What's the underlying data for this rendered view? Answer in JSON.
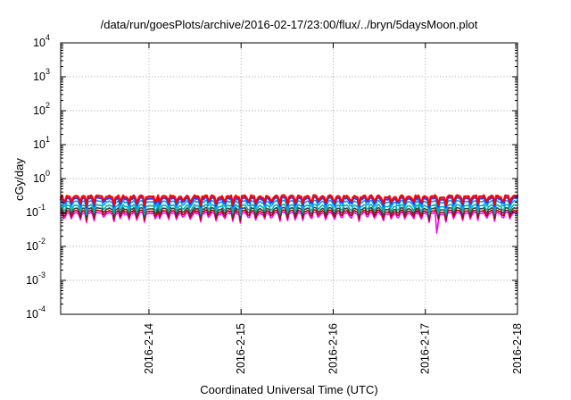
{
  "chart_data": {
    "type": "line",
    "title": "/data/run/goesPlots/archive/2016-02-17/23:00/flux/../bryn/5daysMoon.plot",
    "xlabel": "Coordinated Universal Time (UTC)",
    "ylabel": "cGy/day",
    "x_range": [
      "2016-02-13 01:00",
      "2016-02-18 00:00"
    ],
    "x_ticks": [
      "2016-2-14",
      "2016-2-15",
      "2016-2-16",
      "2016-2-17",
      "2016-2-18"
    ],
    "ylim": [
      0.0001,
      10000
    ],
    "yscale": "log",
    "y_ticks": [
      {
        "value": 0.0001,
        "base": "10",
        "exp": "-4"
      },
      {
        "value": 0.001,
        "base": "10",
        "exp": "-3"
      },
      {
        "value": 0.01,
        "base": "10",
        "exp": "-2"
      },
      {
        "value": 0.1,
        "base": "10",
        "exp": "-1"
      },
      {
        "value": 1,
        "base": "10",
        "exp": "0"
      },
      {
        "value": 10,
        "base": "10",
        "exp": "1"
      },
      {
        "value": 100,
        "base": "10",
        "exp": "2"
      },
      {
        "value": 1000,
        "base": "10",
        "exp": "3"
      },
      {
        "value": 10000,
        "base": "10",
        "exp": "4"
      }
    ],
    "grid": true,
    "legend": "none",
    "series": [
      {
        "color": "#ff00ff",
        "baseline": 0.095
      },
      {
        "color": "#c00000",
        "baseline": 0.11
      },
      {
        "color": "#404040",
        "baseline": 0.13
      },
      {
        "color": "#00b0a0",
        "baseline": 0.16
      },
      {
        "color": "#00a0ff",
        "baseline": 0.21
      },
      {
        "color": "#2040ff",
        "baseline": 0.26
      },
      {
        "color": "#ff0000",
        "baseline": 0.3
      }
    ],
    "features": {
      "dips_day_fraction": [
        0.04,
        0.12,
        0.21,
        0.28,
        0.36,
        0.47,
        0.58,
        0.65,
        0.74,
        0.83,
        0.91,
        1.03,
        1.08,
        1.17,
        1.26,
        1.33,
        1.41,
        1.52,
        1.61,
        1.69,
        1.78,
        1.87,
        1.95,
        2.04,
        2.12,
        2.21,
        2.29,
        2.38,
        2.46,
        2.55,
        2.63,
        2.72,
        2.8,
        2.88,
        2.97,
        3.05,
        3.15,
        3.24,
        3.33,
        3.41,
        3.5,
        3.59,
        3.66,
        3.74,
        3.83,
        3.91,
        4.0,
        4.1,
        4.18,
        4.27,
        4.36,
        4.45,
        4.53,
        4.62,
        4.71,
        4.8,
        4.88
      ],
      "deep_dip": {
        "date": "2016-02-17 02:00",
        "value": 0.025
      }
    }
  }
}
